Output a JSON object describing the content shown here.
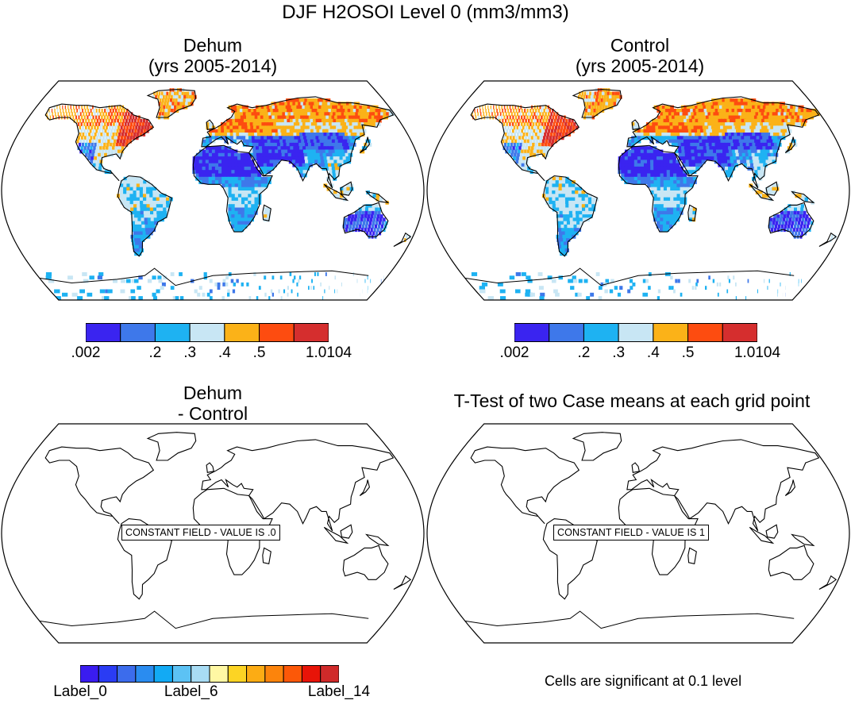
{
  "figure": {
    "title": "DJF H2OSOI Level 0 (mm3/mm3)"
  },
  "panels": {
    "dehum": {
      "title_line1": "Dehum",
      "title_line2": "(yrs 2005-2014)"
    },
    "control": {
      "title_line1": "Control",
      "title_line2": "(yrs 2005-2014)"
    },
    "diff": {
      "title_line1": "Dehum",
      "title_line2": "- Control",
      "note": "CONSTANT FIELD - VALUE IS .0"
    },
    "ttest": {
      "title": "T-Test of two Case means at each grid point",
      "note": "CONSTANT FIELD - VALUE IS 1",
      "footer": "Cells are significant at 0.1 level"
    }
  },
  "colorbar_top": {
    "colors": [
      "#3a24f0",
      "#3e78ea",
      "#1eb2f2",
      "#c8e6f4",
      "#fbb218",
      "#fd4c10",
      "#d52e2e"
    ],
    "labels": [
      ".002",
      ".2",
      ".3",
      ".4",
      ".5",
      "1.0104"
    ],
    "label_positions": [
      0,
      2,
      3,
      4,
      5,
      7
    ]
  },
  "colorbar_bottom": {
    "colors": [
      "#3a1cf0",
      "#2a3cf4",
      "#3c6cec",
      "#2a8cf0",
      "#12aaf4",
      "#5cc2f4",
      "#a8dcf4",
      "#fff8a4",
      "#fcd424",
      "#fcac14",
      "#fc840c",
      "#fc5808",
      "#e81408",
      "#d02a2a"
    ],
    "labels": [
      "Label_0",
      "Label_6",
      "Label_14"
    ],
    "label_positions": [
      0,
      6,
      14
    ]
  },
  "chart_data": [
    {
      "type": "heatmap",
      "title": "Dehum (yrs 2005-2014)",
      "variable": "H2OSOI Level 0",
      "units": "mm3/mm3",
      "season": "DJF",
      "colorbar_levels": [
        0.002,
        0.2,
        0.3,
        0.4,
        0.5,
        1.0104
      ],
      "regions": [
        {
          "region": "Sahara / Arabia",
          "class": "<.2 (driest)"
        },
        {
          "region": "Australia interior",
          "class": "<.2"
        },
        {
          "region": "Central Asia",
          "class": "<.2"
        },
        {
          "region": "Eastern North America",
          "class": ">.5"
        },
        {
          "region": "Northern Europe / Siberia",
          "class": ".4-.5"
        },
        {
          "region": "Amazon",
          "class": ".3-.4"
        },
        {
          "region": "Central Africa",
          "class": ".3-.4"
        }
      ]
    },
    {
      "type": "heatmap",
      "title": "Control (yrs 2005-2014)",
      "variable": "H2OSOI Level 0",
      "units": "mm3/mm3",
      "season": "DJF",
      "colorbar_levels": [
        0.002,
        0.2,
        0.3,
        0.4,
        0.5,
        1.0104
      ]
    },
    {
      "type": "heatmap",
      "title": "Dehum - Control",
      "constant_value": 0.0
    },
    {
      "type": "heatmap",
      "title": "T-Test of two Case means at each grid point",
      "constant_value": 1
    }
  ]
}
